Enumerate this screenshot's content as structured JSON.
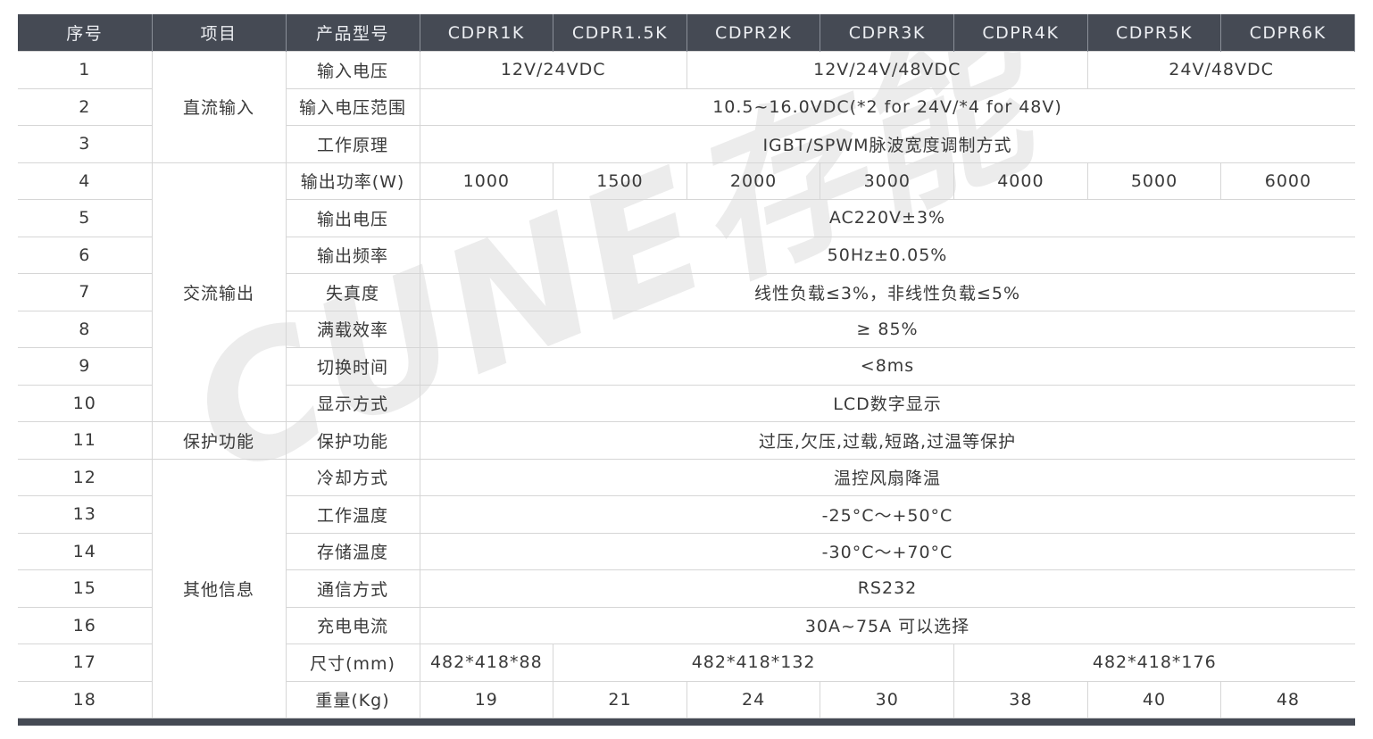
{
  "header": [
    "序号",
    "项目",
    "产品型号",
    "CDPR1K",
    "CDPR1.5K",
    "CDPR2K",
    "CDPR3K",
    "CDPR4K",
    "CDPR5K",
    "CDPR6K"
  ],
  "groups": [
    {
      "label": "直流输入",
      "rows": 3
    },
    {
      "label": "交流输出",
      "rows": 7
    },
    {
      "label": "保护功能",
      "rows": 1
    },
    {
      "label": "其他信息",
      "rows": 7
    }
  ],
  "rows": [
    {
      "no": "1",
      "param": "输入电压",
      "values": [
        {
          "text": "12V/24VDC",
          "span": 2
        },
        {
          "text": "12V/24V/48VDC",
          "span": 3
        },
        {
          "text": "24V/48VDC",
          "span": 2
        }
      ]
    },
    {
      "no": "2",
      "param": "输入电压范围",
      "values": [
        {
          "text": "10.5~16.0VDC(*2 for 24V/*4 for 48V)",
          "span": 7
        }
      ]
    },
    {
      "no": "3",
      "param": "工作原理",
      "values": [
        {
          "text": "IGBT/SPWM脉波宽度调制方式",
          "span": 7
        }
      ]
    },
    {
      "no": "4",
      "param": "输出功率(W)",
      "values": [
        {
          "text": "1000",
          "span": 1
        },
        {
          "text": "1500",
          "span": 1
        },
        {
          "text": "2000",
          "span": 1
        },
        {
          "text": "3000",
          "span": 1
        },
        {
          "text": "4000",
          "span": 1
        },
        {
          "text": "5000",
          "span": 1
        },
        {
          "text": "6000",
          "span": 1
        }
      ]
    },
    {
      "no": "5",
      "param": "输出电压",
      "values": [
        {
          "text": "AC220V±3%",
          "span": 7
        }
      ]
    },
    {
      "no": "6",
      "param": "输出频率",
      "values": [
        {
          "text": "50Hz±0.05%",
          "span": 7
        }
      ]
    },
    {
      "no": "7",
      "param": "失真度",
      "values": [
        {
          "text": "线性负载≤3%，非线性负载≤5%",
          "span": 7
        }
      ]
    },
    {
      "no": "8",
      "param": "满载效率",
      "values": [
        {
          "text": "≥ 85%",
          "span": 7
        }
      ]
    },
    {
      "no": "9",
      "param": "切换时间",
      "values": [
        {
          "text": "<8ms",
          "span": 7
        }
      ]
    },
    {
      "no": "10",
      "param": "显示方式",
      "values": [
        {
          "text": "LCD数字显示",
          "span": 7
        }
      ]
    },
    {
      "no": "11",
      "param": "保护功能",
      "values": [
        {
          "text": "过压,欠压,过载,短路,过温等保护",
          "span": 7
        }
      ]
    },
    {
      "no": "12",
      "param": "冷却方式",
      "values": [
        {
          "text": "温控风扇降温",
          "span": 7
        }
      ]
    },
    {
      "no": "13",
      "param": "工作温度",
      "values": [
        {
          "text": "-25°C～+50°C",
          "span": 7
        }
      ]
    },
    {
      "no": "14",
      "param": "存储温度",
      "values": [
        {
          "text": "-30°C～+70°C",
          "span": 7
        }
      ]
    },
    {
      "no": "15",
      "param": "通信方式",
      "values": [
        {
          "text": "RS232",
          "span": 7
        }
      ]
    },
    {
      "no": "16",
      "param": "充电电流",
      "values": [
        {
          "text": "30A~75A 可以选择",
          "span": 7
        }
      ]
    },
    {
      "no": "17",
      "param": "尺寸(mm)",
      "values": [
        {
          "text": "482*418*88",
          "span": 1
        },
        {
          "text": "482*418*132",
          "span": 3
        },
        {
          "text": "482*418*176",
          "span": 3
        }
      ]
    },
    {
      "no": "18",
      "param": "重量(Kg)",
      "values": [
        {
          "text": "19",
          "span": 1
        },
        {
          "text": "21",
          "span": 1
        },
        {
          "text": "24",
          "span": 1
        },
        {
          "text": "30",
          "span": 1
        },
        {
          "text": "38",
          "span": 1
        },
        {
          "text": "40",
          "span": 1
        },
        {
          "text": "48",
          "span": 1
        }
      ]
    }
  ],
  "watermark": "CUNE存能",
  "colors": {
    "header_bg": "#454a54",
    "border": "#d6d6d6",
    "text": "#3a3a3a"
  }
}
